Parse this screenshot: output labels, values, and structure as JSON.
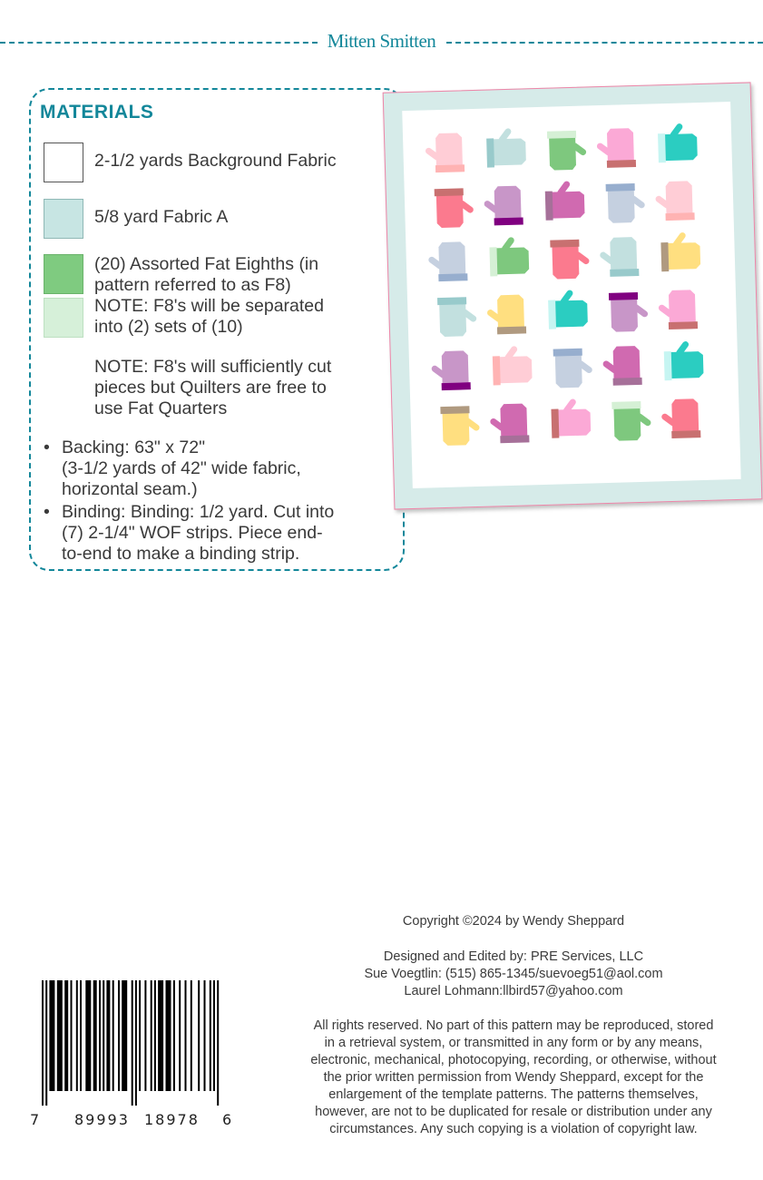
{
  "header": {
    "title": "Mitten Smitten"
  },
  "materials": {
    "heading": "MATERIALS",
    "items": [
      {
        "swatch": "#ffffff",
        "lines": [
          "2-1/2 yards Background Fabric"
        ]
      },
      {
        "swatch": "#c7e5e3",
        "lines": [
          "5/8 yard Fabric A"
        ]
      },
      {
        "swatch": "#7fcb80",
        "lines": [
          "(20) Assorted Fat Eighths (in",
          "pattern referred to as F8)",
          "NOTE: F8's will be separated",
          "into (2) sets of (10)"
        ]
      },
      {
        "swatch": "#d6f0d9"
      }
    ],
    "note": [
      "NOTE: F8's will sufficiently cut",
      "pieces but Quilters are free to",
      "use Fat Quarters"
    ],
    "bullets": [
      {
        "lines": [
          "Backing: 63\" x 72\"",
          "(3-1/2 yards of 42\" wide fabric,",
          "horizontal seam.)"
        ]
      },
      {
        "lines": [
          "Binding: Binding: 1/2 yard. Cut into",
          "(7) 2-1/4\" WOF strips. Piece end-",
          "to-end to make a binding strip."
        ]
      }
    ]
  },
  "quilt": {
    "border_color": "#d6ebe9",
    "mittens": [
      {
        "body": "#ffcdd6",
        "cuff": "#ffb3b3",
        "orientation": "cuff-bottom"
      },
      {
        "body": "#c2e0df",
        "cuff": "#98cacb",
        "orientation": "cuff-left"
      },
      {
        "body": "#7ec87e",
        "cuff": "#d5f0d5",
        "orientation": "cuff-top"
      },
      {
        "body": "#fba9d6",
        "cuff": "#c87070",
        "orientation": "cuff-bottom"
      },
      {
        "body": "#2bcdc1",
        "cuff": "#c6f5f2",
        "orientation": "cuff-left"
      },
      {
        "body": "#fb7a8e",
        "cuff": "#c87070",
        "orientation": "cuff-top"
      },
      {
        "body": "#c896c8",
        "cuff": "#800080",
        "orientation": "cuff-bottom"
      },
      {
        "body": "#d06ab0",
        "cuff": "#a67099",
        "orientation": "cuff-left"
      },
      {
        "body": "#c5d0e0",
        "cuff": "#97aece",
        "orientation": "cuff-top"
      },
      {
        "body": "#ffcdd6",
        "cuff": "#ffb3b3",
        "orientation": "cuff-bottom"
      },
      {
        "body": "#c5d0e0",
        "cuff": "#97aece",
        "orientation": "cuff-bottom"
      },
      {
        "body": "#7ec87e",
        "cuff": "#d5f0d5",
        "orientation": "cuff-left"
      },
      {
        "body": "#fb7a8e",
        "cuff": "#c87070",
        "orientation": "cuff-top"
      },
      {
        "body": "#c2e0df",
        "cuff": "#98cacb",
        "orientation": "cuff-bottom"
      },
      {
        "body": "#ffdf80",
        "cuff": "#b09a80",
        "orientation": "cuff-left"
      },
      {
        "body": "#c2e0df",
        "cuff": "#98cacb",
        "orientation": "cuff-top"
      },
      {
        "body": "#ffdf80",
        "cuff": "#b09a80",
        "orientation": "cuff-bottom"
      },
      {
        "body": "#2bcdc1",
        "cuff": "#c6f5f2",
        "orientation": "cuff-left"
      },
      {
        "body": "#c896c8",
        "cuff": "#800080",
        "orientation": "cuff-top"
      },
      {
        "body": "#fba9d6",
        "cuff": "#c87070",
        "orientation": "cuff-bottom"
      },
      {
        "body": "#c896c8",
        "cuff": "#800080",
        "orientation": "cuff-bottom"
      },
      {
        "body": "#ffcdd6",
        "cuff": "#ffb3b3",
        "orientation": "cuff-left"
      },
      {
        "body": "#c5d0e0",
        "cuff": "#97aece",
        "orientation": "cuff-top"
      },
      {
        "body": "#d06ab0",
        "cuff": "#a67099",
        "orientation": "cuff-bottom"
      },
      {
        "body": "#2bcdc1",
        "cuff": "#c6f5f2",
        "orientation": "cuff-left"
      },
      {
        "body": "#ffdf80",
        "cuff": "#b09a80",
        "orientation": "cuff-top"
      },
      {
        "body": "#d06ab0",
        "cuff": "#a67099",
        "orientation": "cuff-bottom"
      },
      {
        "body": "#fba9d6",
        "cuff": "#c87070",
        "orientation": "cuff-left"
      },
      {
        "body": "#7ec87e",
        "cuff": "#d5f0d5",
        "orientation": "cuff-top"
      },
      {
        "body": "#fb7a8e",
        "cuff": "#c87070",
        "orientation": "cuff-bottom"
      }
    ]
  },
  "footer": {
    "copyright": "Copyright ©2024 by Wendy Sheppard",
    "credits": [
      "Designed and Edited by: PRE Services, LLC",
      "Sue Voegtlin: (515) 865-1345/suevoeg51@aol.com",
      "Laurel Lohmann:llbird57@yahoo.com"
    ],
    "rights": [
      "All rights reserved. No part of this pattern may be reproduced, stored",
      "in a retrieval system, or transmitted in any form or by any means,",
      "electronic, mechanical, photocopying, recording, or otherwise, without",
      "the prior written permission from Wendy Sheppard, except for the",
      "enlargement of the template patterns. The patterns themselves,",
      "however, are not to be duplicated for resale or distribution under any",
      "circumstances. Any such copying is a violation of copyright law."
    ]
  },
  "barcode": {
    "digits": [
      "7",
      "89993",
      "18978",
      "6"
    ]
  },
  "colors": {
    "accent": "#13879a"
  }
}
